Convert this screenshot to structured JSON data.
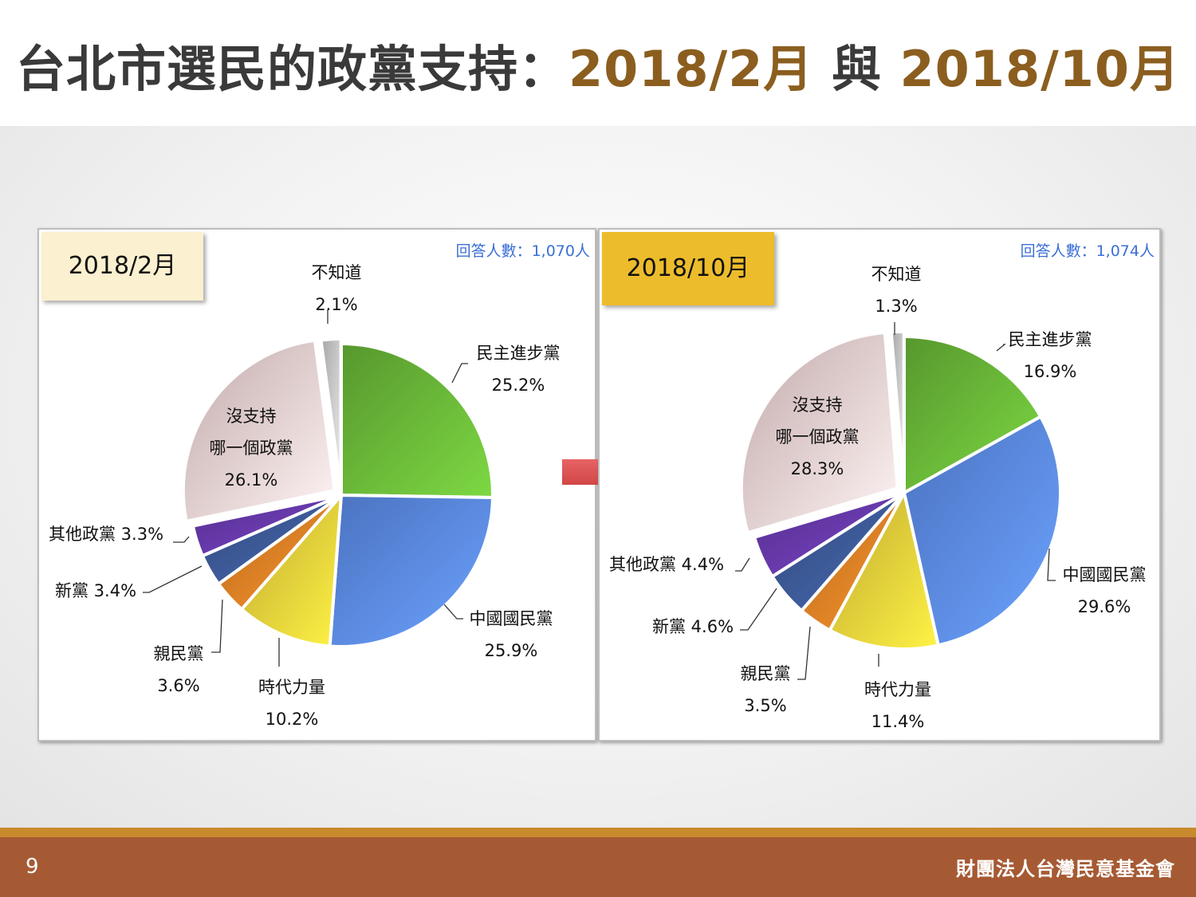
{
  "title": {
    "main": "台北市選民的政黨支持：",
    "part1": "2018/2月",
    "sep": " 與 ",
    "part2": "2018/10月"
  },
  "colors": {
    "title_accent": "#8b5e1f",
    "dpp": "#6dbd3a",
    "kmt": "#5e8ef0",
    "npp": "#f0d33c",
    "pfp": "#e38326",
    "np": "#3f5c9c",
    "other": "#6a3bb0",
    "none": "#f3d4d4",
    "unknown": "#d0d0d0",
    "footer": "#a65a33",
    "footer_line": "#c98a2e",
    "arrow": "#e05050"
  },
  "chart_data": [
    {
      "type": "pie",
      "title": "2018/2月",
      "respondents": "回答人數：1,070人",
      "slices": [
        {
          "name": "民主進步黨",
          "value": 25.2,
          "value_label": "25.2%",
          "color": "#6dbd3a"
        },
        {
          "name": "中國國民黨",
          "value": 25.9,
          "value_label": "25.9%",
          "color": "#5e8ef0"
        },
        {
          "name": "時代力量",
          "value": 10.2,
          "value_label": "10.2%",
          "color": "#f0d33c"
        },
        {
          "name": "親民黨",
          "value": 3.6,
          "value_label": "3.6%",
          "color": "#e38326"
        },
        {
          "name": "新黨",
          "value": 3.4,
          "value_label": "新黨 3.4%",
          "color": "#3f5c9c"
        },
        {
          "name": "其他政黨",
          "value": 3.3,
          "value_label": "其他政黨 3.3%",
          "color": "#6a3bb0"
        },
        {
          "name": "沒支持哪一個政黨",
          "value": 26.1,
          "value_label": "26.1%",
          "color": "#f3d4d4"
        },
        {
          "name": "不知道",
          "value": 2.1,
          "value_label": "2.1%",
          "color": "#d0d0d0"
        }
      ],
      "labels": {
        "dpp_name": "民主進步黨",
        "dpp_val": "25.2%",
        "kmt_name": "中國國民黨",
        "kmt_val": "25.9%",
        "npp_name": "時代力量",
        "npp_val": "10.2%",
        "pfp_name": "親民黨",
        "pfp_val": "3.6%",
        "np": "新黨 3.4%",
        "other": "其他政黨 3.3%",
        "none_line1": "沒支持",
        "none_line2": "哪一個政黨",
        "none_val": "26.1%",
        "unknown_name": "不知道",
        "unknown_val": "2.1%"
      }
    },
    {
      "type": "pie",
      "title": "2018/10月",
      "respondents": "回答人數：1,074人",
      "slices": [
        {
          "name": "民主進步黨",
          "value": 16.9,
          "value_label": "16.9%",
          "color": "#6dbd3a"
        },
        {
          "name": "中國國民黨",
          "value": 29.6,
          "value_label": "29.6%",
          "color": "#5e8ef0"
        },
        {
          "name": "時代力量",
          "value": 11.4,
          "value_label": "11.4%",
          "color": "#f0d33c"
        },
        {
          "name": "親民黨",
          "value": 3.5,
          "value_label": "3.5%",
          "color": "#e38326"
        },
        {
          "name": "新黨",
          "value": 4.6,
          "value_label": "新黨 4.6%",
          "color": "#3f5c9c"
        },
        {
          "name": "其他政黨",
          "value": 4.4,
          "value_label": "其他政黨 4.4%",
          "color": "#6a3bb0"
        },
        {
          "name": "沒支持哪一個政黨",
          "value": 28.3,
          "value_label": "28.3%",
          "color": "#f3d4d4"
        },
        {
          "name": "不知道",
          "value": 1.3,
          "value_label": "1.3%",
          "color": "#d0d0d0"
        }
      ],
      "labels": {
        "dpp_name": "民主進步黨",
        "dpp_val": "16.9%",
        "kmt_name": "中國國民黨",
        "kmt_val": "29.6%",
        "npp_name": "時代力量",
        "npp_val": "11.4%",
        "pfp_name": "親民黨",
        "pfp_val": "3.5%",
        "np": "新黨 4.6%",
        "other": "其他政黨 4.4%",
        "none_line1": "沒支持",
        "none_line2": "哪一個政黨",
        "none_val": "28.3%",
        "unknown_name": "不知道",
        "unknown_val": "1.3%"
      }
    }
  ],
  "footer": {
    "page_number": "9",
    "org": "財團法人台灣民意基金會"
  }
}
